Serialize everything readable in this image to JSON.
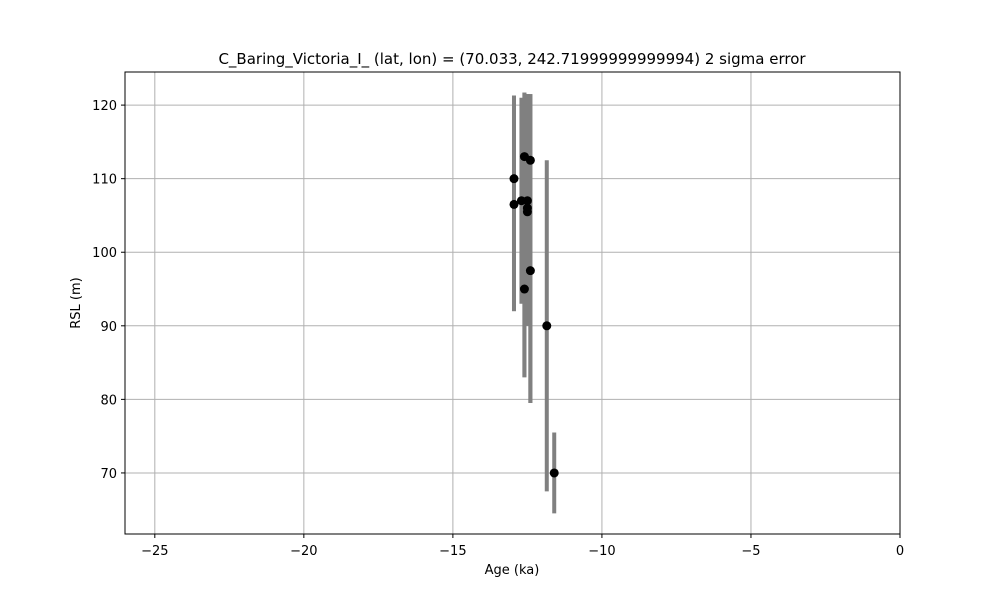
{
  "chart_data": {
    "type": "scatter",
    "title": "C_Baring_Victoria_I_ (lat, lon) = (70.033, 242.71999999999994)  2 sigma error",
    "xlabel": "Age (ka)",
    "ylabel": "RSL (m)",
    "xlim": [
      -26,
      0
    ],
    "ylim": [
      61.7,
      124.5
    ],
    "xticks": [
      -25,
      -20,
      -15,
      -10,
      -5,
      0
    ],
    "yticks": [
      70,
      80,
      90,
      100,
      110,
      120
    ],
    "xtick_labels": [
      "−25",
      "−20",
      "−15",
      "−10",
      "−5",
      "0"
    ],
    "ytick_labels": [
      "70",
      "80",
      "90",
      "100",
      "110",
      "120"
    ],
    "grid": true,
    "marker_color": "#000000",
    "errorbar_color": "#808080",
    "points": [
      {
        "x": -12.95,
        "y": 110.0,
        "ylow": 92.0,
        "yhigh": 121.3
      },
      {
        "x": -12.95,
        "y": 106.5,
        "ylow": 92.0,
        "yhigh": 121.3
      },
      {
        "x": -12.7,
        "y": 107.0,
        "ylow": 93.0,
        "yhigh": 121.0
      },
      {
        "x": -12.6,
        "y": 113.0,
        "ylow": 83.0,
        "yhigh": 121.7
      },
      {
        "x": -12.6,
        "y": 95.0,
        "ylow": 83.0,
        "yhigh": 121.7
      },
      {
        "x": -12.5,
        "y": 107.0,
        "ylow": 90.0,
        "yhigh": 121.5
      },
      {
        "x": -12.5,
        "y": 106.0,
        "ylow": 90.0,
        "yhigh": 121.5
      },
      {
        "x": -12.5,
        "y": 105.5,
        "ylow": 90.0,
        "yhigh": 121.5
      },
      {
        "x": -12.4,
        "y": 112.5,
        "ylow": 79.5,
        "yhigh": 121.5
      },
      {
        "x": -12.4,
        "y": 97.5,
        "ylow": 79.5,
        "yhigh": 121.5
      },
      {
        "x": -11.85,
        "y": 90.0,
        "ylow": 67.5,
        "yhigh": 112.5
      },
      {
        "x": -11.6,
        "y": 70.0,
        "ylow": 64.5,
        "yhigh": 75.5
      }
    ]
  }
}
